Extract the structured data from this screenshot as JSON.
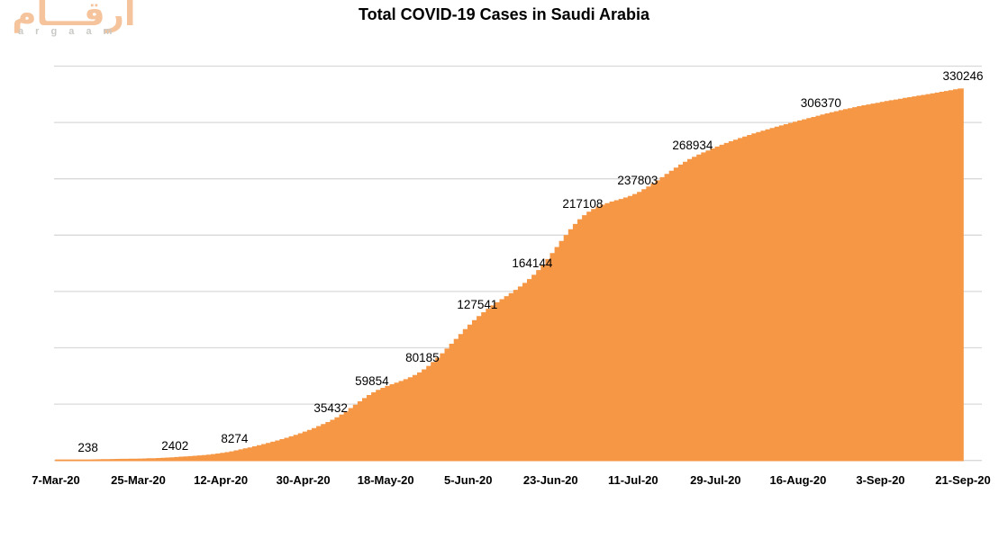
{
  "logo": {
    "arabic": "أرقـــام",
    "latin_spaced": "a r g a a m"
  },
  "chart_data": {
    "type": "area",
    "title": "Total COVID-19 Cases in Saudi Arabia",
    "x_tick_labels": [
      "7-Mar-20",
      "25-Mar-20",
      "12-Apr-20",
      "30-Apr-20",
      "18-May-20",
      "5-Jun-20",
      "23-Jun-20",
      "11-Jul-20",
      "29-Jul-20",
      "16-Aug-20",
      "3-Sep-20",
      "21-Sep-20"
    ],
    "x_tick_interval_days": 18,
    "x_range_days": [
      0,
      198
    ],
    "ylim": [
      0,
      350000
    ],
    "gridline_step": 50000,
    "grid": true,
    "legend": false,
    "y_axis_labels_visible": false,
    "labeled_points": [
      {
        "day_offset": 7,
        "value": 238
      },
      {
        "day_offset": 26,
        "value": 2402
      },
      {
        "day_offset": 39,
        "value": 8274
      },
      {
        "day_offset": 60,
        "value": 35432
      },
      {
        "day_offset": 69,
        "value": 59854
      },
      {
        "day_offset": 80,
        "value": 80185
      },
      {
        "day_offset": 92,
        "value": 127541
      },
      {
        "day_offset": 104,
        "value": 164144
      },
      {
        "day_offset": 115,
        "value": 217108
      },
      {
        "day_offset": 127,
        "value": 237803
      },
      {
        "day_offset": 139,
        "value": 268934
      },
      {
        "day_offset": 167,
        "value": 306370
      },
      {
        "day_offset": 198,
        "value": 330246
      }
    ],
    "colors": {
      "area_fill": "#F59745",
      "gridline": "#D9D9D9",
      "text": "#000000",
      "logo_peach": "#F5C49C",
      "logo_gray": "#C9C9C6"
    }
  }
}
